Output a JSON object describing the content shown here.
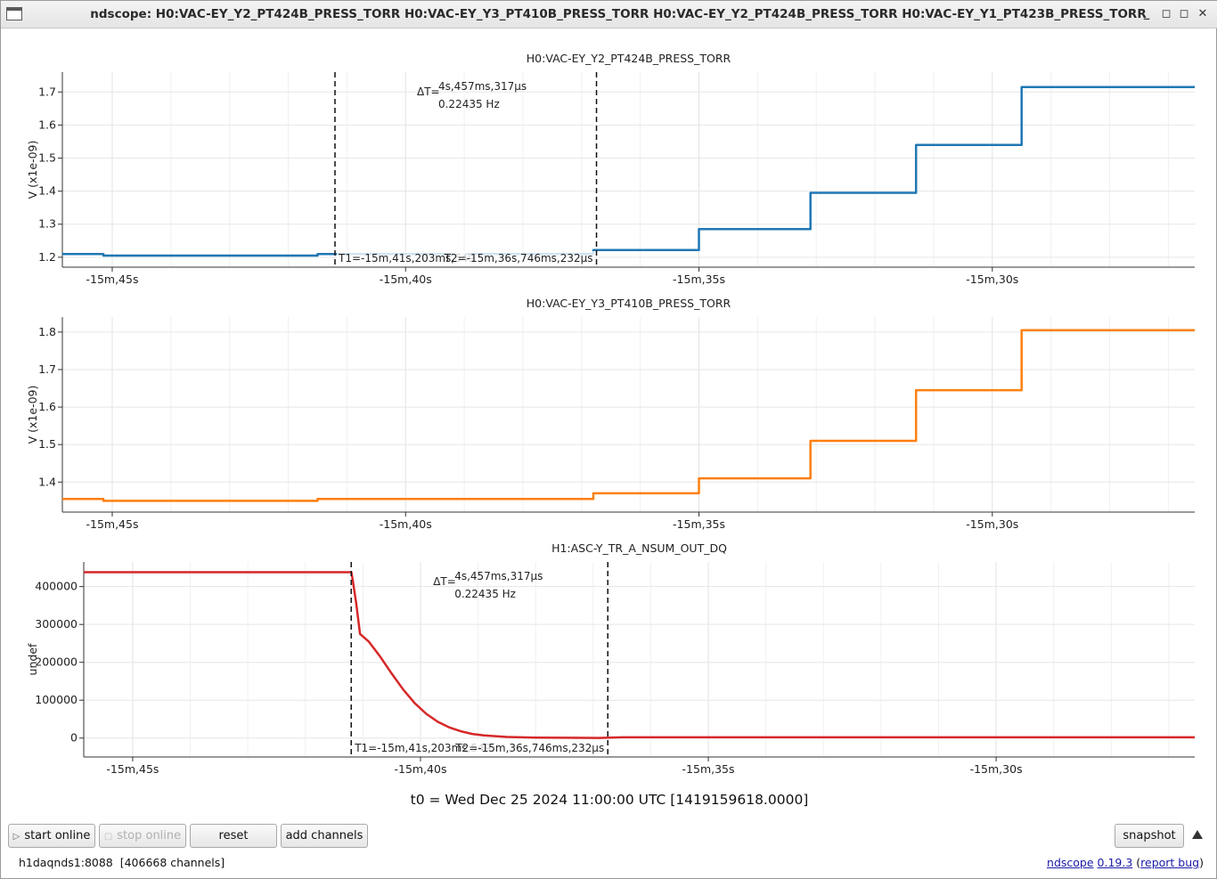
{
  "window": {
    "title": "ndscope: H0:VAC-EY_Y2_PT424B_PRESS_TORR H0:VAC-EY_Y3_PT410B_PRESS_TORR H0:VAC-EY_Y2_PT424B_PRESS_TORR H0:VAC-EY_Y1_PT423B_PRESS_TORR",
    "minimize_glyph": "_",
    "maximize_glyph": "◻",
    "restore_glyph": "◻",
    "close_glyph": "✕"
  },
  "cursor_readouts": {
    "delta_label": "ΔT=",
    "delta_time": "4s,457ms,317μs",
    "delta_freq": "0.22435 Hz",
    "t1_label": "T1=-15m,41s,203ms,549",
    "t2_label": "T2=-15m,36s,746ms,232μs"
  },
  "chart_data": [
    {
      "type": "line",
      "title": "H0:VAC-EY_Y2_PT424B_PRESS_TORR",
      "ylabel": "V (x1e-09)",
      "xlim": [
        -945.85,
        -926.55
      ],
      "ylim": [
        1.17,
        1.76
      ],
      "x_ticks": [
        -945,
        -940,
        -935,
        -930
      ],
      "x_tick_labels": [
        "-15m,45s",
        "-15m,40s",
        "-15m,35s",
        "-15m,30s"
      ],
      "y_ticks": [
        1.2,
        1.3,
        1.4,
        1.5,
        1.6,
        1.7
      ],
      "y_tick_labels": [
        "1.2",
        "1.3",
        "1.4",
        "1.5",
        "1.6",
        "1.7"
      ],
      "grid": true,
      "color": "#1f77b4",
      "cursors": true,
      "series": [
        {
          "x": [
            -945.85,
            -945.15,
            -945.15,
            -941.5,
            -941.5,
            -936.8,
            -936.8,
            -935.0,
            -935.0,
            -933.1,
            -933.1,
            -931.3,
            -931.3,
            -929.5,
            -929.5,
            -926.55
          ],
          "y": [
            1.21,
            1.21,
            1.205,
            1.205,
            1.21,
            1.21,
            1.222,
            1.222,
            1.285,
            1.285,
            1.395,
            1.395,
            1.54,
            1.54,
            1.715,
            1.715
          ]
        }
      ]
    },
    {
      "type": "line",
      "title": "H0:VAC-EY_Y3_PT410B_PRESS_TORR",
      "ylabel": "V (x1e-09)",
      "xlim": [
        -945.85,
        -926.55
      ],
      "ylim": [
        1.32,
        1.84
      ],
      "x_ticks": [
        -945,
        -940,
        -935,
        -930
      ],
      "x_tick_labels": [
        "-15m,45s",
        "-15m,40s",
        "-15m,35s",
        "-15m,30s"
      ],
      "y_ticks": [
        1.4,
        1.5,
        1.6,
        1.7,
        1.8
      ],
      "y_tick_labels": [
        "1.4",
        "1.5",
        "1.6",
        "1.7",
        "1.8"
      ],
      "grid": true,
      "color": "#ff7f0e",
      "cursors": false,
      "series": [
        {
          "x": [
            -945.85,
            -945.15,
            -945.15,
            -941.5,
            -941.5,
            -936.8,
            -936.8,
            -935.0,
            -935.0,
            -933.1,
            -933.1,
            -931.3,
            -931.3,
            -929.5,
            -929.5,
            -926.55
          ],
          "y": [
            1.355,
            1.355,
            1.35,
            1.35,
            1.355,
            1.355,
            1.37,
            1.37,
            1.41,
            1.41,
            1.51,
            1.51,
            1.645,
            1.645,
            1.805,
            1.805
          ]
        }
      ]
    },
    {
      "type": "line",
      "title": "H1:ASC-Y_TR_A_NSUM_OUT_DQ",
      "ylabel": "undef",
      "xlim": [
        -945.85,
        -926.55
      ],
      "ylim": [
        -50000,
        465000
      ],
      "x_ticks": [
        -945,
        -940,
        -935,
        -930
      ],
      "x_tick_labels": [
        "-15m,45s",
        "-15m,40s",
        "-15m,35s",
        "-15m,30s"
      ],
      "y_ticks": [
        0,
        100000,
        200000,
        300000,
        400000
      ],
      "y_tick_labels": [
        "0",
        "100000",
        "200000",
        "300000",
        "400000"
      ],
      "grid": true,
      "color": "#d62728",
      "cursors": true,
      "series": [
        {
          "x": [
            -945.85,
            -941.2,
            -941.18,
            -941.12,
            -941.05,
            -940.9,
            -940.7,
            -940.5,
            -940.3,
            -940.1,
            -939.9,
            -939.7,
            -939.5,
            -939.3,
            -939.1,
            -938.9,
            -938.5,
            -938.0,
            -937.5,
            -936.9,
            -936.5,
            -936.0,
            -935.0,
            -934.0,
            -933.0,
            -932.0,
            -931.0,
            -930.0,
            -929.0,
            -928.0,
            -927.0,
            -926.55
          ],
          "y": [
            438000,
            438000,
            420000,
            360000,
            275000,
            255000,
            215000,
            170000,
            128000,
            92000,
            64000,
            43000,
            28000,
            18000,
            11000,
            7000,
            3000,
            1200,
            700,
            400,
            2000,
            2000,
            2000,
            2000,
            2000,
            2000,
            2000,
            2000,
            2000,
            2000,
            2000,
            2000
          ]
        }
      ]
    }
  ],
  "t0_text": "t0 = Wed Dec 25 2024 11:00:00 UTC [1419159618.0000]",
  "buttons": {
    "start_online": "start online",
    "stop_online": "stop online",
    "reset": "reset",
    "add_channels": "add channels",
    "snapshot": "snapshot"
  },
  "status": {
    "server": "h1daqnds1:8088",
    "channels": "[406668 channels]"
  },
  "footer": {
    "app": "ndscope",
    "version": "0.19.3",
    "open_paren": "(",
    "report": "report bug",
    "close_paren": ")"
  }
}
